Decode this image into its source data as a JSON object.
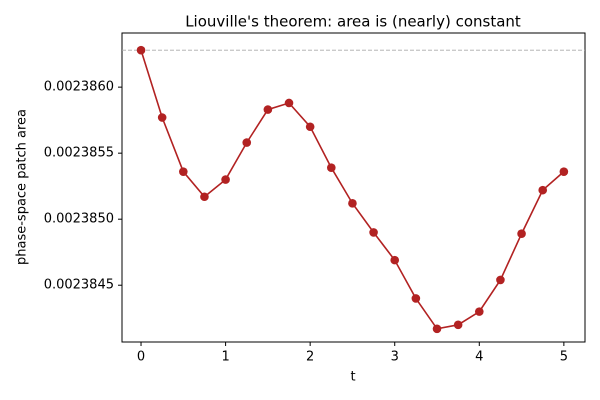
{
  "chart_data": {
    "type": "line",
    "title": "Liouville's theorem: area is (nearly) constant",
    "x_label": "t",
    "y_label": "phase-space patch area",
    "x": [
      0,
      0.25,
      0.5,
      0.75,
      1,
      1.25,
      1.5,
      1.75,
      2,
      2.25,
      2.5,
      2.75,
      3,
      3.25,
      3.5,
      3.75,
      4,
      4.25,
      4.5,
      4.75,
      5
    ],
    "series": [
      {
        "color": "#b22222",
        "values": [
          0.00238628,
          0.00238577,
          0.00238536,
          0.00238517,
          0.0023853,
          0.00238558,
          0.00238583,
          0.00238588,
          0.0023857,
          0.00238539,
          0.00238512,
          0.0023849,
          0.00238469,
          0.0023844,
          0.00238417,
          0.0023842,
          0.0023843,
          0.00238454,
          0.00238489,
          0.00238522,
          0.00238536
        ]
      }
    ],
    "reference_line": {
      "value": 0.00238628,
      "color": "#aaaaaa",
      "style": "dashed"
    },
    "xlim": [
      -0.225,
      5.25
    ],
    "ylim": [
      0.00238407,
      0.00238641
    ],
    "xticks": [
      0,
      1,
      2,
      3,
      4,
      5
    ],
    "yticks": [
      {
        "value": 0.002386,
        "label": "0.0023860"
      },
      {
        "value": 0.0023855,
        "label": "0.0023855"
      },
      {
        "value": 0.002385,
        "label": "0.0023850"
      },
      {
        "value": 0.0023845,
        "label": "0.0023845"
      }
    ],
    "grid": false
  }
}
